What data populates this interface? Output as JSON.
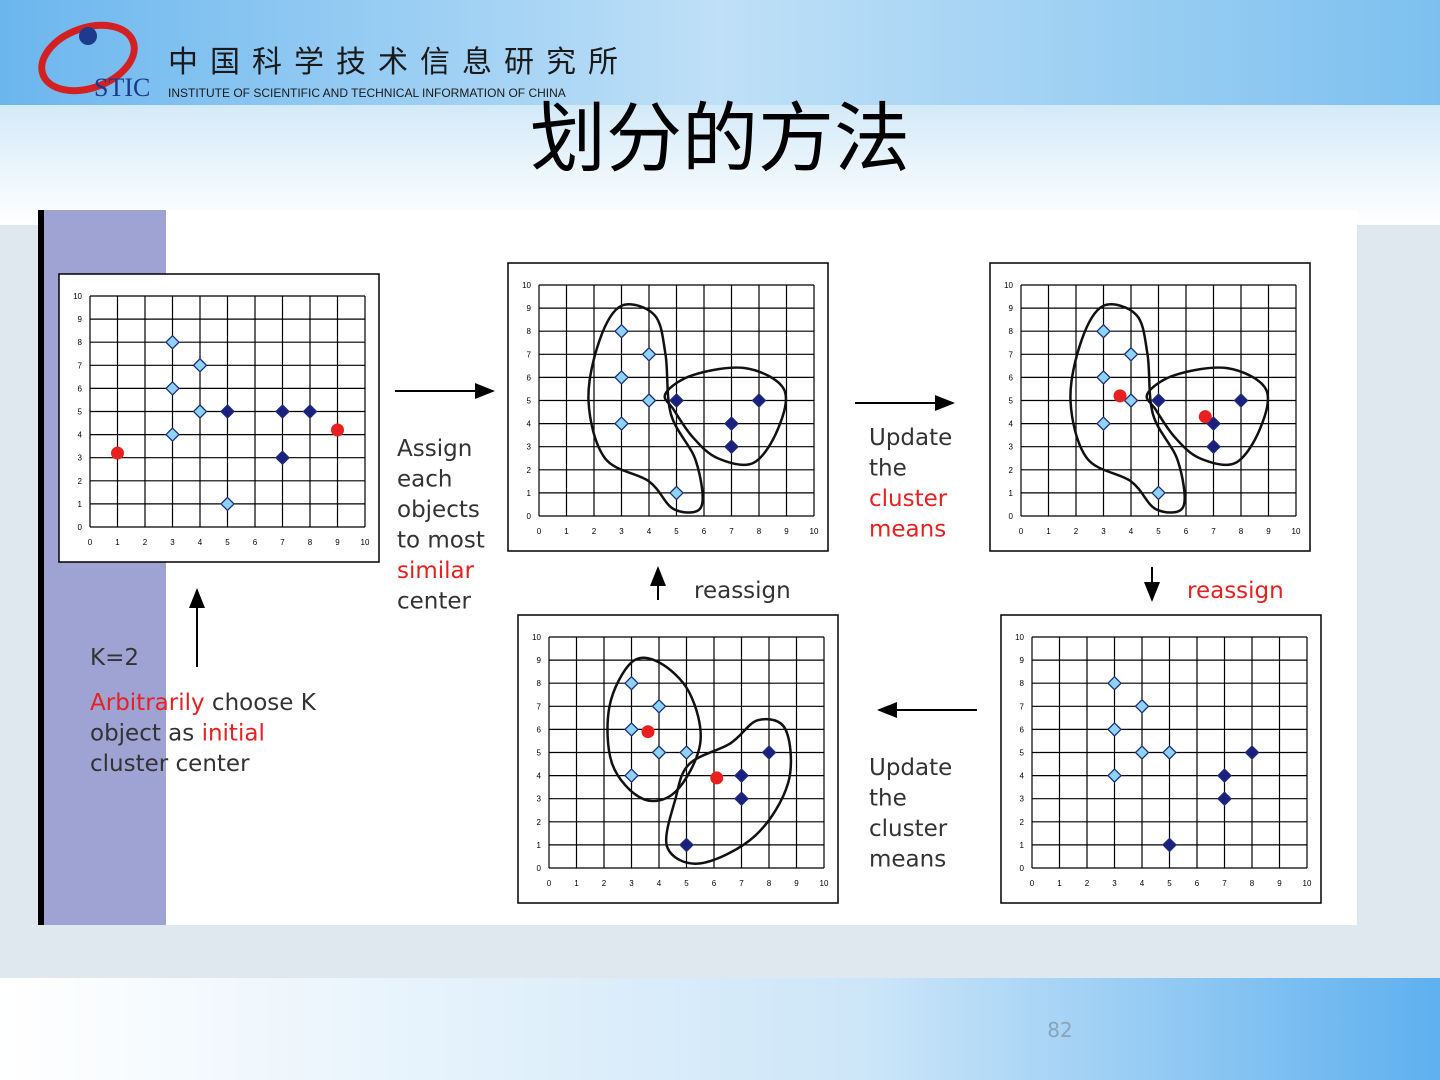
{
  "header": {
    "logo": "STIC",
    "institute": "中国科学技术信息研究所",
    "institute_en": "INSTITUTE OF SCIENTIFIC AND TECHNICAL INFORMATION OF CHINA"
  },
  "title": "划分的方法",
  "annotations": {
    "k": [
      [
        {
          "text": "K=2"
        }
      ]
    ],
    "choose": [
      [
        {
          "text": "Arbitrarily",
          "emphasis": true
        },
        {
          "text": " choose K"
        }
      ],
      [
        {
          "text": "object as "
        },
        {
          "text": "initial",
          "emphasis": true
        }
      ],
      [
        {
          "text": "cluster center"
        }
      ]
    ],
    "assign": [
      [
        {
          "text": "Assign"
        }
      ],
      [
        {
          "text": "each"
        }
      ],
      [
        {
          "text": "objects"
        }
      ],
      [
        {
          "text": "to most"
        }
      ],
      [
        {
          "text": "similar",
          "emphasis": true
        }
      ],
      [
        {
          "text": "center"
        }
      ]
    ],
    "update_top": [
      [
        {
          "text": "Update"
        }
      ],
      [
        {
          "text": "the"
        }
      ],
      [
        {
          "text": "cluster",
          "emphasis": true
        }
      ],
      [
        {
          "text": "means",
          "emphasis": true
        }
      ]
    ],
    "reassign_left": [
      [
        {
          "text": "reassign"
        }
      ]
    ],
    "reassign_right": [
      [
        {
          "text": "reassign",
          "emphasis": true
        }
      ]
    ],
    "update_bottom": [
      [
        {
          "text": "Update"
        }
      ],
      [
        {
          "text": "the"
        }
      ],
      [
        {
          "text": "cluster"
        }
      ],
      [
        {
          "text": "means"
        }
      ]
    ]
  },
  "page_number": "82",
  "chart_data": [
    {
      "type": "scatter",
      "xlim": [
        0,
        10
      ],
      "ylim": [
        0,
        10
      ],
      "xticks": [
        0,
        1,
        2,
        3,
        4,
        5,
        6,
        7,
        8,
        9,
        10
      ],
      "yticks": [
        0,
        1,
        2,
        3,
        4,
        5,
        6,
        7,
        8,
        9,
        10
      ],
      "grid": true,
      "series": [
        {
          "color": "#8fd3f4",
          "marker": "diamond",
          "x": [
            3,
            3,
            3,
            4,
            4,
            5
          ],
          "values": [
            8,
            6,
            4,
            7,
            5,
            1
          ]
        },
        {
          "color": "#1c1f80",
          "marker": "diamond",
          "x": [
            5,
            7,
            8,
            7
          ],
          "values": [
            5,
            5,
            5,
            3
          ]
        },
        {
          "color": "#e82020",
          "marker": "circle",
          "x": [
            1,
            9
          ],
          "values": [
            3.2,
            4.2
          ]
        }
      ]
    },
    {
      "type": "scatter",
      "xlim": [
        0,
        10
      ],
      "ylim": [
        0,
        10
      ],
      "xticks": [
        0,
        1,
        2,
        3,
        4,
        5,
        6,
        7,
        8,
        9,
        10
      ],
      "yticks": [
        0,
        1,
        2,
        3,
        4,
        5,
        6,
        7,
        8,
        9,
        10
      ],
      "grid": true,
      "series": [
        {
          "color": "#8fd3f4",
          "marker": "diamond",
          "x": [
            3,
            3,
            3,
            4,
            4,
            5
          ],
          "values": [
            8,
            6,
            4,
            7,
            5,
            1
          ]
        },
        {
          "color": "#1c1f80",
          "marker": "diamond",
          "x": [
            5,
            7,
            7,
            8
          ],
          "values": [
            5,
            4,
            3,
            5
          ]
        }
      ]
    },
    {
      "type": "scatter",
      "xlim": [
        0,
        10
      ],
      "ylim": [
        0,
        10
      ],
      "xticks": [
        0,
        1,
        2,
        3,
        4,
        5,
        6,
        7,
        8,
        9,
        10
      ],
      "yticks": [
        0,
        1,
        2,
        3,
        4,
        5,
        6,
        7,
        8,
        9,
        10
      ],
      "grid": true,
      "series": [
        {
          "color": "#8fd3f4",
          "marker": "diamond",
          "x": [
            3,
            3,
            3,
            4,
            4,
            5
          ],
          "values": [
            8,
            6,
            4,
            7,
            5,
            1
          ]
        },
        {
          "color": "#1c1f80",
          "marker": "diamond",
          "x": [
            5,
            7,
            7,
            8
          ],
          "values": [
            5,
            4,
            3,
            5
          ]
        },
        {
          "color": "#e82020",
          "marker": "circle",
          "x": [
            3.6,
            6.7
          ],
          "values": [
            5.2,
            4.3
          ]
        }
      ]
    },
    {
      "type": "scatter",
      "xlim": [
        0,
        10
      ],
      "ylim": [
        0,
        10
      ],
      "xticks": [
        0,
        1,
        2,
        3,
        4,
        5,
        6,
        7,
        8,
        9,
        10
      ],
      "yticks": [
        0,
        1,
        2,
        3,
        4,
        5,
        6,
        7,
        8,
        9,
        10
      ],
      "grid": true,
      "series": [
        {
          "color": "#8fd3f4",
          "marker": "diamond",
          "x": [
            3,
            3,
            3,
            4,
            4,
            5
          ],
          "values": [
            8,
            6,
            4,
            7,
            5,
            5
          ]
        },
        {
          "color": "#1c1f80",
          "marker": "diamond",
          "x": [
            5,
            7,
            7,
            8
          ],
          "values": [
            1,
            4,
            3,
            5
          ]
        }
      ]
    },
    {
      "type": "scatter",
      "xlim": [
        0,
        10
      ],
      "ylim": [
        0,
        10
      ],
      "xticks": [
        0,
        1,
        2,
        3,
        4,
        5,
        6,
        7,
        8,
        9,
        10
      ],
      "yticks": [
        0,
        1,
        2,
        3,
        4,
        5,
        6,
        7,
        8,
        9,
        10
      ],
      "grid": true,
      "series": [
        {
          "color": "#8fd3f4",
          "marker": "diamond",
          "x": [
            3,
            3,
            3,
            4,
            4,
            5
          ],
          "values": [
            8,
            6,
            4,
            7,
            5,
            5
          ]
        },
        {
          "color": "#1c1f80",
          "marker": "diamond",
          "x": [
            5,
            7,
            7,
            8
          ],
          "values": [
            1,
            4,
            3,
            5
          ]
        },
        {
          "color": "#e82020",
          "marker": "circle",
          "x": [
            3.6,
            6.1
          ],
          "values": [
            5.9,
            3.9
          ]
        }
      ]
    }
  ]
}
